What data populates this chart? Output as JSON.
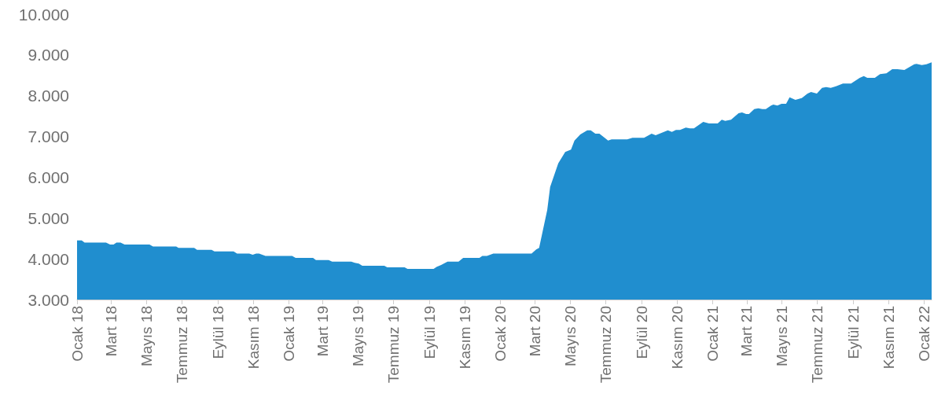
{
  "chart_data": {
    "type": "area",
    "color": "#208ecf",
    "grid": false,
    "marker": "none",
    "xlim": [
      "2018-01-01",
      "2022-01-14"
    ],
    "xticks": [
      {
        "value": "2018-01-01",
        "label": "Ocak 18"
      },
      {
        "value": "2018-03-01",
        "label": "Mart 18"
      },
      {
        "value": "2018-05-01",
        "label": "Mayıs 18"
      },
      {
        "value": "2018-07-01",
        "label": "Temmuz 18"
      },
      {
        "value": "2018-09-01",
        "label": "Eylül 18"
      },
      {
        "value": "2018-11-01",
        "label": "Kasım 18"
      },
      {
        "value": "2019-01-01",
        "label": "Ocak 19"
      },
      {
        "value": "2019-03-01",
        "label": "Mart 19"
      },
      {
        "value": "2019-05-01",
        "label": "Mayıs 19"
      },
      {
        "value": "2019-07-01",
        "label": "Temmuz 19"
      },
      {
        "value": "2019-09-01",
        "label": "Eylül 19"
      },
      {
        "value": "2019-11-01",
        "label": "Kasım 19"
      },
      {
        "value": "2020-01-01",
        "label": "Ocak 20"
      },
      {
        "value": "2020-03-01",
        "label": "Mart 20"
      },
      {
        "value": "2020-05-01",
        "label": "Mayıs 20"
      },
      {
        "value": "2020-07-01",
        "label": "Temmuz 20"
      },
      {
        "value": "2020-09-01",
        "label": "Eylül 20"
      },
      {
        "value": "2020-11-01",
        "label": "Kasım 20"
      },
      {
        "value": "2021-01-01",
        "label": "Ocak 21"
      },
      {
        "value": "2021-03-01",
        "label": "Mart 21"
      },
      {
        "value": "2021-05-01",
        "label": "Mayıs 21"
      },
      {
        "value": "2021-07-01",
        "label": "Temmuz 21"
      },
      {
        "value": "2021-09-01",
        "label": "Eylül 21"
      },
      {
        "value": "2021-11-01",
        "label": "Kasım 21"
      },
      {
        "value": "2022-01-01",
        "label": "Ocak 22"
      }
    ],
    "ylim": [
      3000,
      10000
    ],
    "yticks": [
      {
        "value": 3000,
        "label": "3.000"
      },
      {
        "value": 4000,
        "label": "4.000"
      },
      {
        "value": 5000,
        "label": "5.000"
      },
      {
        "value": 6000,
        "label": "6.000"
      },
      {
        "value": 7000,
        "label": "7.000"
      },
      {
        "value": 8000,
        "label": "8.000"
      },
      {
        "value": 9000,
        "label": "9.000"
      },
      {
        "value": 10000,
        "label": "10.000"
      }
    ],
    "x": [
      "2018-01-01",
      "2018-01-09",
      "2018-01-14",
      "2018-02-20",
      "2018-02-27",
      "2018-03-05",
      "2018-03-10",
      "2018-03-17",
      "2018-03-24",
      "2018-05-06",
      "2018-05-12",
      "2018-06-21",
      "2018-06-25",
      "2018-07-22",
      "2018-07-27",
      "2018-08-21",
      "2018-08-26",
      "2018-09-28",
      "2018-10-04",
      "2018-10-25",
      "2018-10-31",
      "2018-11-06",
      "2018-11-11",
      "2018-11-22",
      "2019-01-07",
      "2019-01-13",
      "2019-02-12",
      "2019-02-17",
      "2019-03-11",
      "2019-03-17",
      "2019-04-19",
      "2019-04-25",
      "2019-05-02",
      "2019-05-08",
      "2019-06-15",
      "2019-06-20",
      "2019-07-20",
      "2019-07-25",
      "2019-09-08",
      "2019-09-13",
      "2019-09-21",
      "2019-10-02",
      "2019-10-21",
      "2019-10-29",
      "2019-11-26",
      "2019-12-01",
      "2019-12-09",
      "2019-12-20",
      "2020-02-24",
      "2020-03-03",
      "2020-03-08",
      "2020-03-22",
      "2020-03-27",
      "2020-04-10",
      "2020-04-22",
      "2020-05-02",
      "2020-05-08",
      "2020-05-18",
      "2020-05-30",
      "2020-06-05",
      "2020-06-13",
      "2020-06-20",
      "2020-07-05",
      "2020-07-11",
      "2020-08-07",
      "2020-08-16",
      "2020-09-05",
      "2020-09-18",
      "2020-09-25",
      "2020-10-16",
      "2020-10-23",
      "2020-10-30",
      "2020-11-06",
      "2020-11-16",
      "2020-11-23",
      "2020-11-30",
      "2020-12-16",
      "2020-12-26",
      "2021-01-10",
      "2021-01-17",
      "2021-01-23",
      "2021-02-02",
      "2021-02-15",
      "2021-02-21",
      "2021-02-28",
      "2021-03-05",
      "2021-03-14",
      "2021-03-21",
      "2021-03-28",
      "2021-04-03",
      "2021-04-12",
      "2021-04-16",
      "2021-04-23",
      "2021-04-30",
      "2021-05-08",
      "2021-05-14",
      "2021-05-24",
      "2021-06-04",
      "2021-06-14",
      "2021-06-20",
      "2021-06-30",
      "2021-07-09",
      "2021-07-16",
      "2021-07-24",
      "2021-08-02",
      "2021-08-14",
      "2021-08-28",
      "2021-09-12",
      "2021-09-19",
      "2021-09-25",
      "2021-10-08",
      "2021-10-17",
      "2021-10-28",
      "2021-11-07",
      "2021-11-16",
      "2021-11-28",
      "2021-12-15",
      "2021-12-19",
      "2021-12-28",
      "2022-01-05",
      "2022-01-14"
    ],
    "values": [
      4450,
      4450,
      4400,
      4400,
      4350,
      4350,
      4400,
      4400,
      4350,
      4350,
      4300,
      4300,
      4270,
      4270,
      4220,
      4220,
      4180,
      4180,
      4130,
      4130,
      4100,
      4130,
      4130,
      4070,
      4070,
      4020,
      4020,
      3970,
      3970,
      3930,
      3930,
      3900,
      3880,
      3830,
      3830,
      3790,
      3790,
      3750,
      3750,
      3800,
      3850,
      3930,
      3930,
      4020,
      4020,
      4070,
      4070,
      4130,
      4130,
      4230,
      4270,
      5200,
      5760,
      6340,
      6620,
      6680,
      6900,
      7050,
      7150,
      7150,
      7070,
      7070,
      6900,
      6930,
      6930,
      6970,
      6970,
      7070,
      7030,
      7150,
      7110,
      7160,
      7160,
      7220,
      7200,
      7200,
      7360,
      7320,
      7320,
      7410,
      7380,
      7410,
      7570,
      7590,
      7550,
      7550,
      7670,
      7690,
      7670,
      7670,
      7760,
      7780,
      7760,
      7800,
      7800,
      7960,
      7900,
      7940,
      8050,
      8090,
      8050,
      8190,
      8210,
      8190,
      8230,
      8300,
      8300,
      8440,
      8480,
      8440,
      8440,
      8530,
      8550,
      8650,
      8650,
      8630,
      8770,
      8780,
      8750,
      8770,
      8820
    ]
  }
}
